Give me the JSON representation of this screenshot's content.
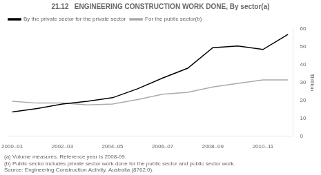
{
  "chart_data": {
    "type": "line",
    "title": "21.12   ENGINEERING CONSTRUCTION WORK DONE, By sector(a)",
    "ylabel": "$billion",
    "x": [
      0,
      1,
      2,
      3,
      4,
      5,
      6,
      7,
      8,
      9,
      10,
      11
    ],
    "series": [
      {
        "name": "By the private sector for the private sector",
        "color": "#000000",
        "values": [
          13.5,
          15.5,
          18.0,
          19.5,
          21.5,
          26.5,
          32.5,
          38.0,
          49.5,
          50.5,
          48.5,
          57.0
        ]
      },
      {
        "name": "For the public sector(b)",
        "color": "#aaaaaa",
        "values": [
          19.5,
          18.5,
          18.5,
          17.5,
          18.0,
          20.5,
          23.5,
          24.5,
          27.5,
          29.5,
          31.5,
          31.5
        ]
      }
    ],
    "xlim": [
      -0.2,
      11.2
    ],
    "xticks": [
      {
        "value": 0,
        "label": "2000–01"
      },
      {
        "value": 2,
        "label": "2002–03"
      },
      {
        "value": 4,
        "label": "2004–05"
      },
      {
        "value": 6,
        "label": "2006–07"
      },
      {
        "value": 8,
        "label": "2008–09"
      },
      {
        "value": 10,
        "label": "2010–11"
      }
    ],
    "ylim": [
      0,
      60
    ],
    "yticks": [
      0,
      10,
      20,
      30,
      40,
      50,
      60
    ],
    "grid": false,
    "legend": "upper left",
    "annotations": [
      "(a) Volume measures. Reference year is 2008-09.",
      "(b) Public sector includes private sector work done for the public sector and public sector work.",
      "Source: Engineering Construction Activity, Australia (8762.0)."
    ]
  }
}
